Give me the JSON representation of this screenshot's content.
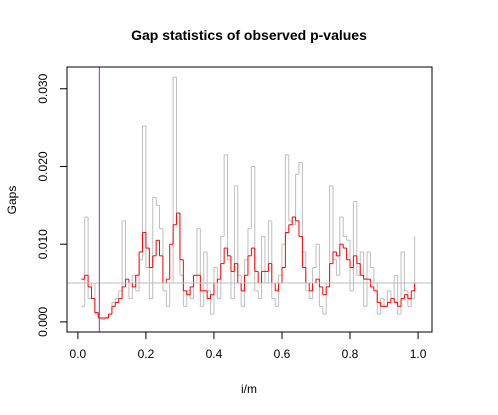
{
  "chart_data": {
    "type": "line",
    "step": true,
    "title": "Gap statistics of observed p-values",
    "x_label": "i/m",
    "y_label": "Gaps",
    "x": [
      0.01,
      0.02,
      0.03,
      0.04,
      0.05,
      0.06,
      0.07,
      0.08,
      0.09,
      0.1,
      0.11,
      0.12,
      0.13,
      0.14,
      0.15,
      0.16,
      0.17,
      0.18,
      0.19,
      0.2,
      0.21,
      0.22,
      0.23,
      0.24,
      0.25,
      0.26,
      0.27,
      0.28,
      0.29,
      0.3,
      0.31,
      0.32,
      0.33,
      0.34,
      0.35,
      0.36,
      0.37,
      0.38,
      0.39,
      0.4,
      0.41,
      0.42,
      0.43,
      0.44,
      0.45,
      0.46,
      0.47,
      0.48,
      0.49,
      0.5,
      0.51,
      0.52,
      0.53,
      0.54,
      0.55,
      0.56,
      0.57,
      0.58,
      0.59,
      0.6,
      0.61,
      0.62,
      0.63,
      0.64,
      0.65,
      0.66,
      0.67,
      0.68,
      0.69,
      0.7,
      0.71,
      0.72,
      0.73,
      0.74,
      0.75,
      0.76,
      0.77,
      0.78,
      0.79,
      0.8,
      0.81,
      0.82,
      0.83,
      0.84,
      0.85,
      0.86,
      0.87,
      0.88,
      0.89,
      0.9,
      0.91,
      0.92,
      0.93,
      0.94,
      0.95,
      0.96,
      0.97,
      0.98,
      0.99
    ],
    "series": [
      {
        "color": "#bebebe",
        "values": [
          0.002,
          0.0135,
          0.003,
          0.005,
          0.001,
          0.0005,
          0.0003,
          0.0006,
          0.001,
          0.0025,
          0.003,
          0.004,
          0.013,
          0.005,
          0.003,
          0.006,
          0.004,
          0.008,
          0.0252,
          0.007,
          0.003,
          0.016,
          0.015,
          0.012,
          0.004,
          0.002,
          0.005,
          0.0315,
          0.014,
          0.006,
          0.002,
          0.004,
          0.003,
          0.005,
          0.012,
          0.002,
          0.009,
          0.004,
          0.001,
          0.007,
          0.003,
          0.011,
          0.0215,
          0.008,
          0.003,
          0.0175,
          0.006,
          0.002,
          0.008,
          0.012,
          0.02,
          0.004,
          0.003,
          0.011,
          0.005,
          0.013,
          0.003,
          0.002,
          0.006,
          0.01,
          0.0215,
          0.013,
          0.0125,
          0.019,
          0.0205,
          0.009,
          0.004,
          0.003,
          0.007,
          0.01,
          0.002,
          0.001,
          0.005,
          0.0175,
          0.008,
          0.006,
          0.0135,
          0.011,
          0.0105,
          0.004,
          0.0155,
          0.006,
          0.009,
          0.002,
          0.009,
          0.007,
          0.005,
          0.001,
          0.003,
          0.002,
          0.004,
          0.003,
          0.006,
          0.001,
          0.009,
          0.004,
          0.002,
          0.003,
          0.011
        ]
      },
      {
        "color": "#ff0000",
        "values": [
          0.0055,
          0.006,
          0.0045,
          0.003,
          0.0012,
          0.0005,
          0.0005,
          0.0005,
          0.001,
          0.002,
          0.0025,
          0.003,
          0.0045,
          0.0055,
          0.005,
          0.0045,
          0.006,
          0.009,
          0.0115,
          0.0095,
          0.007,
          0.0085,
          0.0105,
          0.0085,
          0.005,
          0.0055,
          0.01,
          0.0125,
          0.014,
          0.008,
          0.004,
          0.0035,
          0.0045,
          0.006,
          0.006,
          0.004,
          0.004,
          0.003,
          0.0035,
          0.005,
          0.0055,
          0.0075,
          0.0095,
          0.0085,
          0.0065,
          0.0075,
          0.005,
          0.004,
          0.006,
          0.0085,
          0.0095,
          0.0065,
          0.005,
          0.0065,
          0.0065,
          0.0075,
          0.005,
          0.004,
          0.005,
          0.007,
          0.0115,
          0.0125,
          0.0135,
          0.013,
          0.011,
          0.007,
          0.005,
          0.004,
          0.005,
          0.0055,
          0.0045,
          0.0035,
          0.0045,
          0.0075,
          0.009,
          0.0085,
          0.01,
          0.0095,
          0.008,
          0.007,
          0.0085,
          0.0075,
          0.006,
          0.0055,
          0.0055,
          0.0045,
          0.004,
          0.0025,
          0.002,
          0.002,
          0.0025,
          0.003,
          0.0025,
          0.002,
          0.003,
          0.0035,
          0.003,
          0.004,
          0.005
        ]
      }
    ],
    "vline": {
      "x": 0.063,
      "color": "#a020f0"
    },
    "hline": {
      "y": 0.005,
      "color": "#bebebe"
    },
    "xlim": [
      -0.032,
      1.041
    ],
    "ylim": [
      -0.0013,
      0.0328
    ],
    "xticks": [
      {
        "value": 0,
        "label": "0.0"
      },
      {
        "value": 0.2,
        "label": "0.2"
      },
      {
        "value": 0.4,
        "label": "0.4"
      },
      {
        "value": 0.6,
        "label": "0.6"
      },
      {
        "value": 0.8,
        "label": "0.8"
      },
      {
        "value": 1,
        "label": "1.0"
      }
    ],
    "yticks": [
      {
        "value": 0,
        "label": "0.000"
      },
      {
        "value": 0.01,
        "label": "0.010"
      },
      {
        "value": 0.02,
        "label": "0.020"
      },
      {
        "value": 0.03,
        "label": "0.030"
      }
    ]
  }
}
